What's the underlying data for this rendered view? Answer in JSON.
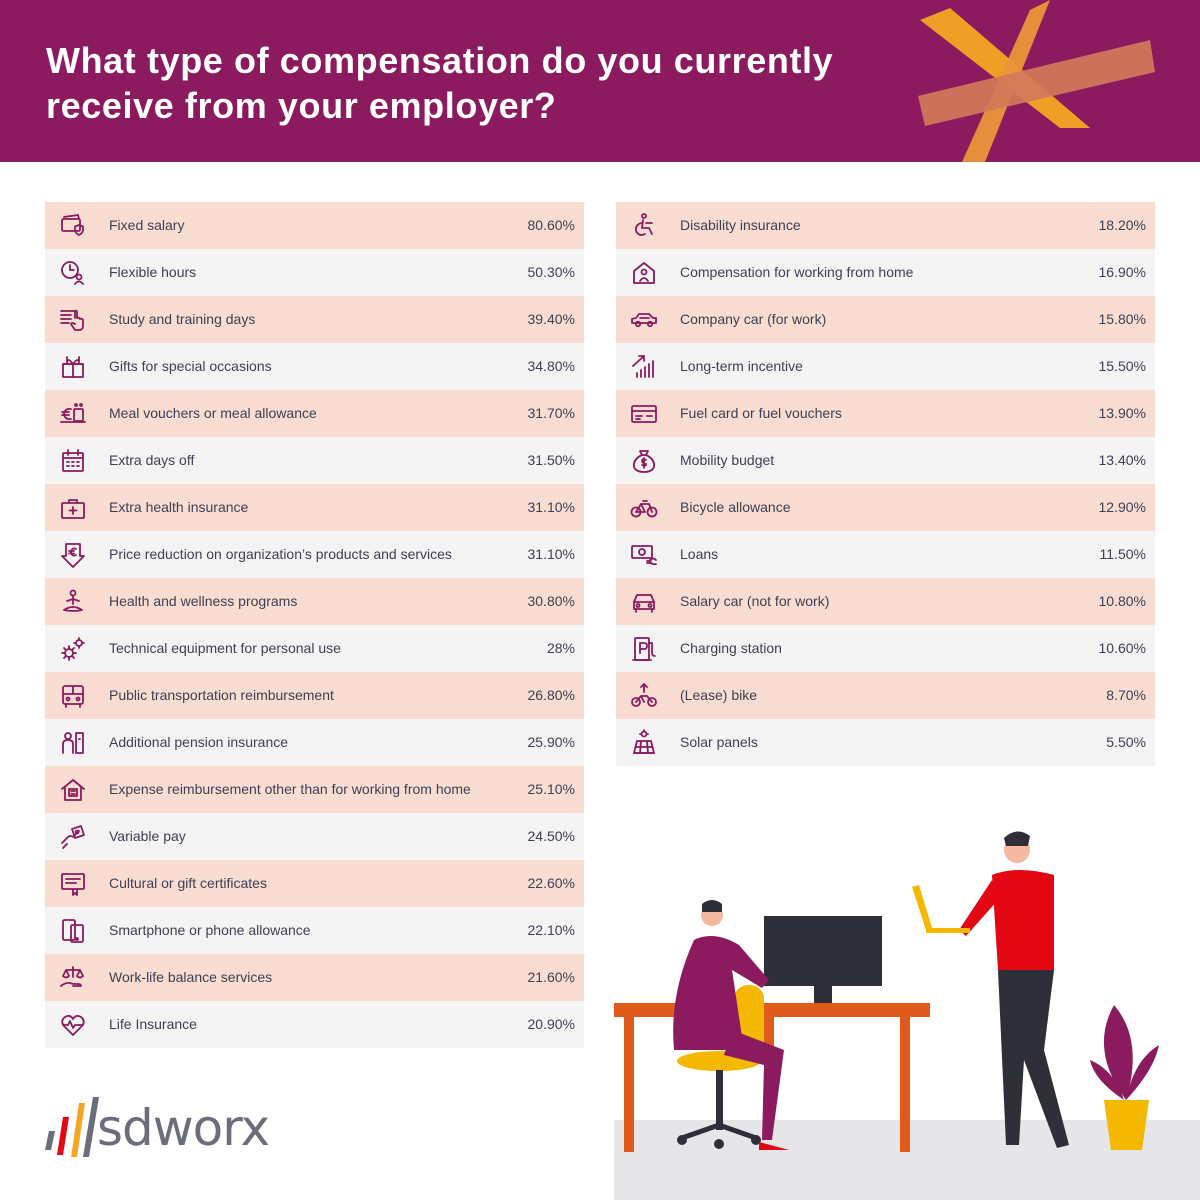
{
  "header": {
    "title": "What type of compensation do you currently receive from your employer?"
  },
  "colors": {
    "header_bg": "#8b1a5e",
    "row_highlight": "#f9dcd2",
    "row_plain": "#f4f4f5",
    "icon": "#8b1a5e",
    "accent_orange": "#f5a623",
    "accent_red": "#e30613"
  },
  "chart_data": {
    "type": "table",
    "title": "What type of compensation do you currently receive from your employer?",
    "columns": [
      [
        {
          "label": "Fixed salary",
          "value": "80.60%",
          "number": 80.6,
          "icon": "wallet-shield-icon"
        },
        {
          "label": "Flexible hours",
          "value": "50.30%",
          "number": 50.3,
          "icon": "clock-person-icon"
        },
        {
          "label": "Study and training days",
          "value": "39.40%",
          "number": 39.4,
          "icon": "presentation-hand-icon"
        },
        {
          "label": "Gifts for special occasions",
          "value": "34.80%",
          "number": 34.8,
          "icon": "gift-icon"
        },
        {
          "label": "Meal vouchers or meal allowance",
          "value": "31.70%",
          "number": 31.7,
          "icon": "meal-euro-icon"
        },
        {
          "label": "Extra days off",
          "value": "31.50%",
          "number": 31.5,
          "icon": "calendar-icon"
        },
        {
          "label": "Extra health insurance",
          "value": "31.10%",
          "number": 31.1,
          "icon": "medical-kit-icon"
        },
        {
          "label": "Price reduction on organization’s products and services",
          "value": "31.10%",
          "number": 31.1,
          "icon": "euro-down-arrow-icon"
        },
        {
          "label": "Health and wellness programs",
          "value": "30.80%",
          "number": 30.8,
          "icon": "meditation-icon"
        },
        {
          "label": "Technical equipment for personal use",
          "value": "28%",
          "number": 28,
          "icon": "gears-icon"
        },
        {
          "label": "Public transportation reimbursement",
          "value": "26.80%",
          "number": 26.8,
          "icon": "bus-icon"
        },
        {
          "label": "Additional pension insurance",
          "value": "25.90%",
          "number": 25.9,
          "icon": "pension-person-icon"
        },
        {
          "label": "Expense reimbursement other than for working from home",
          "value": "25.10%",
          "number": 25.1,
          "icon": "house-receipt-icon"
        },
        {
          "label": "Variable pay",
          "value": "24.50%",
          "number": 24.5,
          "icon": "hand-money-icon"
        },
        {
          "label": "Cultural or gift certificates",
          "value": "22.60%",
          "number": 22.6,
          "icon": "certificate-icon"
        },
        {
          "label": "Smartphone or phone allowance",
          "value": "22.10%",
          "number": 22.1,
          "icon": "smartphone-icon"
        },
        {
          "label": "Work-life balance services",
          "value": "21.60%",
          "number": 21.6,
          "icon": "balance-hand-icon"
        },
        {
          "label": "Life Insurance",
          "value": "20.90%",
          "number": 20.9,
          "icon": "heart-pulse-icon"
        }
      ],
      [
        {
          "label": "Disability insurance",
          "value": "18.20%",
          "number": 18.2,
          "icon": "wheelchair-icon"
        },
        {
          "label": "Compensation for working from home",
          "value": "16.90%",
          "number": 16.9,
          "icon": "home-person-icon"
        },
        {
          "label": "Company car (for work)",
          "value": "15.80%",
          "number": 15.8,
          "icon": "car-icon"
        },
        {
          "label": "Long-term incentive",
          "value": "15.50%",
          "number": 15.5,
          "icon": "growth-bars-icon"
        },
        {
          "label": "Fuel card or fuel vouchers",
          "value": "13.90%",
          "number": 13.9,
          "icon": "fuel-card-icon"
        },
        {
          "label": "Mobility budget",
          "value": "13.40%",
          "number": 13.4,
          "icon": "money-bag-icon"
        },
        {
          "label": "Bicycle allowance",
          "value": "12.90%",
          "number": 12.9,
          "icon": "bicycle-icon"
        },
        {
          "label": "Loans",
          "value": "11.50%",
          "number": 11.5,
          "icon": "banknote-euro-icon"
        },
        {
          "label": "Salary car (not for work)",
          "value": "10.80%",
          "number": 10.8,
          "icon": "car-front-icon"
        },
        {
          "label": "Charging station",
          "value": "10.60%",
          "number": 10.6,
          "icon": "charging-station-icon"
        },
        {
          "label": "(Lease) bike",
          "value": "8.70%",
          "number": 8.7,
          "icon": "ebike-icon"
        },
        {
          "label": "Solar panels",
          "value": "5.50%",
          "number": 5.5,
          "icon": "solar-panel-icon"
        }
      ]
    ]
  },
  "logo": {
    "text": "sdworx",
    "icon": "sdworx-slashes-logo-icon"
  },
  "illustration": {
    "icon": "office-people-illustration"
  }
}
